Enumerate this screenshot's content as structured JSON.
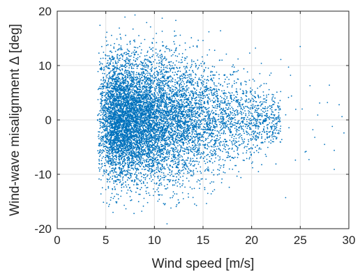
{
  "chart_data": {
    "type": "scatter",
    "title": "",
    "xlabel": "Wind speed [m/s]",
    "ylabel": "Wind-wave misalignment Δ [deg]",
    "xlim": [
      0,
      30
    ],
    "ylim": [
      -20,
      20
    ],
    "xticks": [
      0,
      5,
      10,
      15,
      20,
      25,
      30
    ],
    "xtick_labels": [
      "0",
      "5",
      "10",
      "15",
      "20",
      "25",
      "30"
    ],
    "yticks": [
      -20,
      -10,
      0,
      10,
      20
    ],
    "ytick_labels": [
      "-20",
      "-10",
      "0",
      "10",
      "20"
    ],
    "grid": true,
    "marker_color": "#0072BD",
    "axis_color": "#262626",
    "grid_color": "#e0e0e0",
    "series": [
      {
        "x": [
          4.2,
          4.5,
          4.8,
          5.1,
          5.4,
          5.7,
          6.0,
          6.3,
          6.6,
          6.9,
          7.2,
          7.5,
          7.8,
          8.1,
          8.4,
          8.7,
          9.0,
          9.3,
          9.6,
          9.9,
          10.2,
          10.5,
          10.8,
          11.1,
          11.4,
          11.7,
          12.0,
          12.3,
          12.6,
          12.9,
          13.2,
          13.5,
          13.8,
          14.1,
          14.4,
          14.7,
          15.0,
          15.3,
          15.6,
          15.9,
          16.2,
          16.5,
          16.8,
          17.1,
          17.4,
          17.7,
          18.0,
          18.3,
          18.6,
          18.9,
          19.2,
          19.5,
          19.8,
          20.1,
          20.4,
          20.7,
          21.0,
          21.5,
          22.0,
          22.5,
          23.0,
          23.5,
          24.0,
          24.5,
          25.0,
          25.5,
          26.0,
          26.5,
          27.0,
          27.5,
          28.0,
          28.5,
          29.0,
          29.5,
          8.0,
          10.8,
          11.3,
          7.9,
          9.2,
          12.2,
          5.3,
          4.4,
          27.8,
          28.5,
          25.6,
          25.2,
          23.1,
          22.6,
          20.5,
          21.3,
          20.0,
          26.3,
          24.1,
          26.8,
          28.3,
          29.3,
          25.9,
          23.8
        ],
        "y": [
          8.9,
          -13.6,
          9.1,
          -15.3,
          11.4,
          -12.8,
          12.6,
          -14.5,
          13.2,
          -15.7,
          13.9,
          -14.1,
          16.7,
          -13.3,
          15.5,
          -16.8,
          14.8,
          -15.2,
          17.1,
          -13.9,
          15.9,
          -14.6,
          16.3,
          -15.4,
          13.1,
          -16.2,
          14.4,
          -15.6,
          13.7,
          -13.4,
          12.9,
          -14.2,
          15.1,
          -12.6,
          13.4,
          -11.8,
          14.6,
          -10.9,
          16.2,
          -11.4,
          12.8,
          -10.1,
          16.4,
          -9.6,
          12.1,
          -12.4,
          9.8,
          -8.4,
          11.2,
          -10.6,
          9.4,
          -7.1,
          12.3,
          -8.8,
          13.2,
          -9.5,
          10.4,
          -6.7,
          8.6,
          -8.1,
          11.1,
          -14.3,
          8.2,
          -7.4,
          13.5,
          -5.9,
          6.3,
          -3.2,
          3.1,
          -4.5,
          6.4,
          -5.6,
          2.8,
          -2.4,
          19.3,
          18.7,
          -19.1,
          -17.2,
          17.9,
          18.3,
          -15.9,
          17.4,
          3.2,
          -9.1,
          -5.8,
          2.0,
          -3.6,
          5.1,
          1.4,
          -2.2,
          -0.7,
          -1.8,
          4.4,
          0.9,
          -1.2,
          0.6,
          -7.3,
          9.7
        ]
      }
    ]
  }
}
